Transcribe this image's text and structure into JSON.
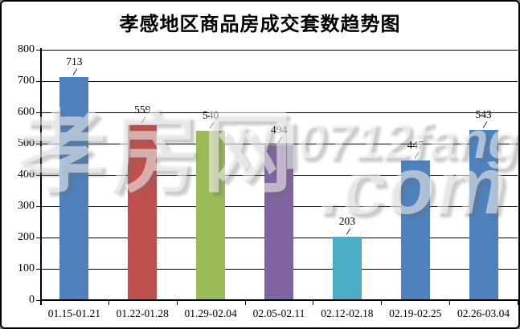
{
  "title": "孝感地区商品房成交套数趋势图",
  "watermark": {
    "cjk": "孝房网",
    "site": "|0712fang",
    "domain": ".com"
  },
  "chart_data": {
    "type": "bar",
    "title": "孝感地区商品房成交套数趋势图",
    "categories": [
      "01.15-01.21",
      "01.22-01.28",
      "01.29-02.04",
      "02.05-02.11",
      "02.12-02.18",
      "02.19-02.25",
      "02.26-03.04"
    ],
    "values": [
      713,
      559,
      540,
      494,
      203,
      447,
      543
    ],
    "bar_colors": [
      "#4F81BD",
      "#C0504D",
      "#9BBB59",
      "#8064A2",
      "#4BACC6",
      "#4F81BD",
      "#4F81BD"
    ],
    "xlabel": "",
    "ylabel": "",
    "ylim": [
      0,
      800
    ],
    "ytick_step": 100,
    "grid": "horizontal",
    "legend": "none",
    "data_labels": [
      713,
      559,
      540,
      494,
      203,
      447,
      543
    ],
    "axis_color": "#000000",
    "grid_color": "#000000",
    "label_color": "#000000",
    "background": "#ffffff"
  }
}
